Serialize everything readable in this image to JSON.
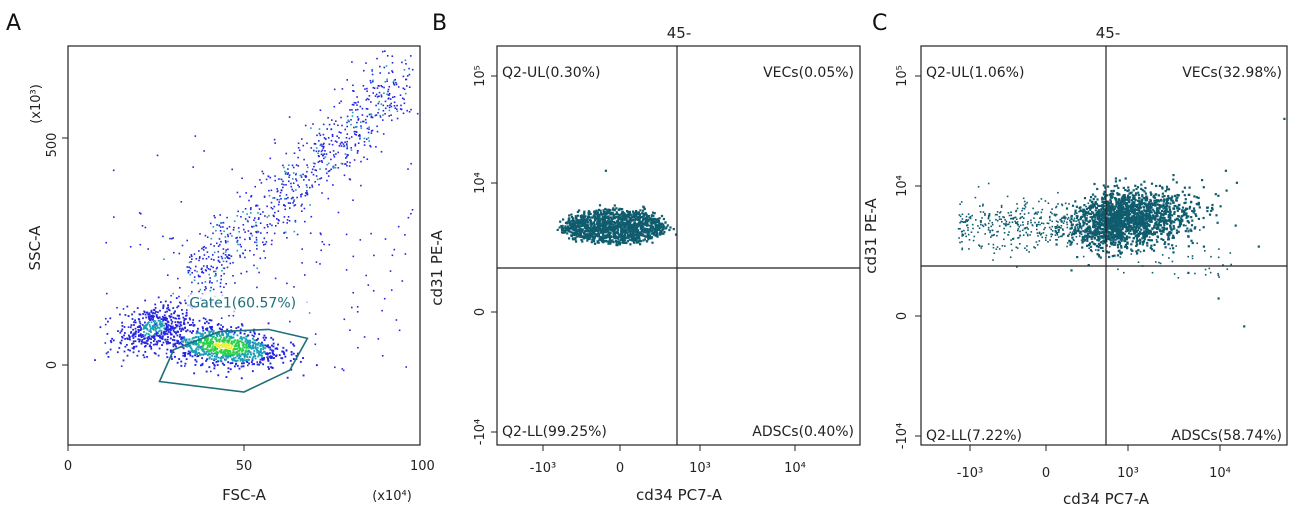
{
  "colors": {
    "frame": "#222222",
    "density_low": "#2525e0",
    "density_mid": "#1a9fb5",
    "density_high": "#2bd14a",
    "density_peak": "#f2ee3a",
    "teal_events": "#0f5c6e",
    "gate_line": "#1e6f7c"
  },
  "chart_data": [
    {
      "panel": "A",
      "type": "scatter",
      "title": "",
      "xlabel": "FSC-A",
      "ylabel": "SSC-A",
      "x_multiplier": "(x10⁴)",
      "y_multiplier": "(x10³)",
      "x_ticks": [
        "0",
        "50",
        "100"
      ],
      "y_ticks": [
        "0",
        "500"
      ],
      "xlim": [
        0,
        100
      ],
      "ylim": [
        -180,
        700
      ],
      "gate": {
        "name": "Gate1",
        "label": "Gate1(60.57%)",
        "percent": 60.57,
        "polygon": [
          [
            30,
            30
          ],
          [
            43,
            70
          ],
          [
            57,
            75
          ],
          [
            68,
            55
          ],
          [
            63,
            -15
          ],
          [
            50,
            -63
          ],
          [
            26,
            -40
          ]
        ]
      },
      "populations": [
        {
          "name": "main cluster",
          "center": [
            44,
            40
          ],
          "spread": [
            8,
            22
          ],
          "count": 900
        },
        {
          "name": "left cluster",
          "center": [
            24,
            80
          ],
          "spread": [
            5,
            25
          ],
          "count": 450
        },
        {
          "name": "diagonal stream",
          "from": [
            35,
            180
          ],
          "to": [
            95,
            630
          ],
          "count": 800
        },
        {
          "name": "scattered events",
          "xrange": [
            10,
            98
          ],
          "yrange": [
            -20,
            640
          ],
          "count": 160
        }
      ]
    },
    {
      "panel": "B",
      "type": "scatter",
      "title": "45-",
      "xlabel": "cd34 PC7-A",
      "ylabel": "cd31 PE-A",
      "x_ticks": [
        "-10³",
        "0",
        "10³",
        "10⁴"
      ],
      "y_ticks": [
        "10⁵",
        "10⁴",
        "0",
        "-10⁴"
      ],
      "scale": "biexponential",
      "quadrants": {
        "upper_left": {
          "label": "Q2-UL(0.30%)",
          "percent": 0.3
        },
        "upper_right": {
          "label": "VECs(0.05%)",
          "percent": 0.05
        },
        "lower_left": {
          "label": "Q2-LL(99.25%)",
          "percent": 99.25
        },
        "lower_right": {
          "label": "ADSCs(0.40%)",
          "percent": 0.4
        }
      },
      "populations": [
        {
          "name": "main cluster",
          "center": [
            0.32,
            0.55
          ],
          "count": 1300
        },
        {
          "name": "stray events",
          "count": 3
        }
      ]
    },
    {
      "panel": "C",
      "type": "scatter",
      "title": "45-",
      "xlabel": "cd34 PC7-A",
      "ylabel": "cd31 PE-A",
      "x_ticks": [
        "-10³",
        "0",
        "10³",
        "10⁴"
      ],
      "y_ticks": [
        "10⁵",
        "10⁴",
        "0",
        "-10⁴"
      ],
      "scale": "biexponential",
      "quadrants": {
        "upper_left": {
          "label": "Q2-UL(1.06%)",
          "percent": 1.06
        },
        "upper_right": {
          "label": "VECs(32.98%)",
          "percent": 32.98
        },
        "lower_left": {
          "label": "Q2-LL(7.22%)",
          "percent": 7.22
        },
        "lower_right": {
          "label": "ADSCs(58.74%)",
          "percent": 58.74
        }
      },
      "populations": [
        {
          "name": "main cluster",
          "center": [
            0.55,
            0.57
          ],
          "count": 1800
        },
        {
          "name": "left tail",
          "count": 500
        },
        {
          "name": "stray events",
          "count": 8
        }
      ]
    }
  ]
}
